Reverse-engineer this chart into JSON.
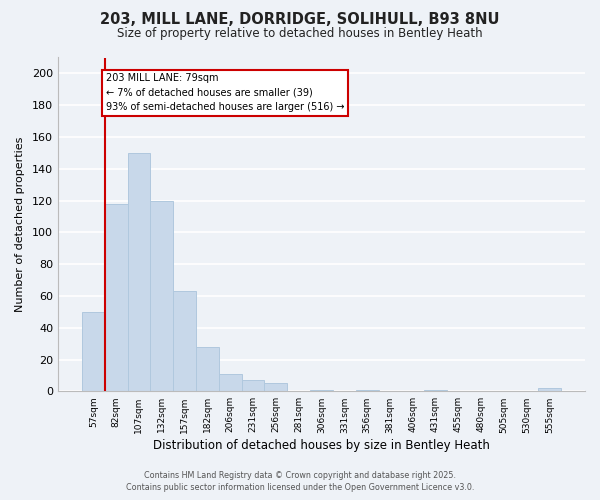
{
  "title_line1": "203, MILL LANE, DORRIDGE, SOLIHULL, B93 8NU",
  "title_line2": "Size of property relative to detached houses in Bentley Heath",
  "xlabel": "Distribution of detached houses by size in Bentley Heath",
  "ylabel": "Number of detached properties",
  "bar_color": "#c8d8ea",
  "bar_edge_color": "#b0c8de",
  "categories": [
    "57sqm",
    "82sqm",
    "107sqm",
    "132sqm",
    "157sqm",
    "182sqm",
    "206sqm",
    "231sqm",
    "256sqm",
    "281sqm",
    "306sqm",
    "331sqm",
    "356sqm",
    "381sqm",
    "406sqm",
    "431sqm",
    "455sqm",
    "480sqm",
    "505sqm",
    "530sqm",
    "555sqm"
  ],
  "values": [
    50,
    118,
    150,
    120,
    63,
    28,
    11,
    7,
    5,
    0,
    1,
    0,
    1,
    0,
    0,
    1,
    0,
    0,
    0,
    0,
    2
  ],
  "ylim": [
    0,
    210
  ],
  "yticks": [
    0,
    20,
    40,
    60,
    80,
    100,
    120,
    140,
    160,
    180,
    200
  ],
  "vline_x": 0.5,
  "vline_color": "#cc0000",
  "annotation_text_line1": "203 MILL LANE: 79sqm",
  "annotation_text_line2": "← 7% of detached houses are smaller (39)",
  "annotation_text_line3": "93% of semi-detached houses are larger (516) →",
  "annotation_box_color": "#ffffff",
  "annotation_box_edge": "#cc0000",
  "footer_line1": "Contains HM Land Registry data © Crown copyright and database right 2025.",
  "footer_line2": "Contains public sector information licensed under the Open Government Licence v3.0.",
  "background_color": "#eef2f7",
  "grid_color": "#ffffff"
}
